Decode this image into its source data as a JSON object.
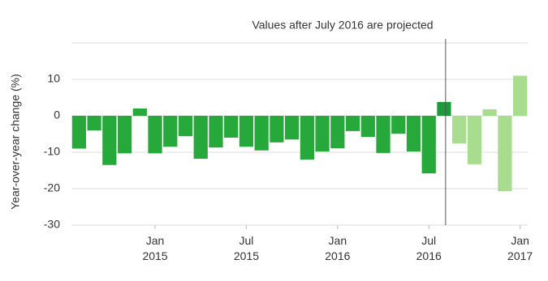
{
  "chart_data": {
    "type": "bar",
    "annotation": "Values after July 2016 are projected",
    "y_label": "Year-over-year change (%)",
    "categories": [
      null,
      null,
      null,
      null,
      null,
      "Jan 2015",
      null,
      null,
      null,
      null,
      null,
      "Jul 2015",
      null,
      null,
      null,
      null,
      null,
      "Jan 2016",
      null,
      null,
      null,
      null,
      null,
      "Jul 2016",
      null,
      null,
      null,
      null,
      null,
      "Jan 2017"
    ],
    "values": [
      -9,
      -4,
      -13.5,
      -10.3,
      2,
      -10.3,
      -8.5,
      -5.6,
      -11.8,
      -8.7,
      -6,
      -8.5,
      -9.5,
      -7.3,
      -6.5,
      -12,
      -9.8,
      -8.9,
      -4.2,
      -5.8,
      -10.2,
      -4.9,
      -9.8,
      -15.8,
      3.8,
      -7.6,
      -13.3,
      1.8,
      -20.7,
      11
    ],
    "colors": [
      "#27a83a",
      "#27a83a",
      "#27a83a",
      "#27a83a",
      "#27a83a",
      "#27a83a",
      "#27a83a",
      "#27a83a",
      "#27a83a",
      "#27a83a",
      "#27a83a",
      "#27a83a",
      "#27a83a",
      "#27a83a",
      "#27a83a",
      "#27a83a",
      "#27a83a",
      "#27a83a",
      "#27a83a",
      "#27a83a",
      "#27a83a",
      "#27a83a",
      "#27a83a",
      "#27a83a",
      "#1f9a3a",
      "#a8dc8f",
      "#a8dc8f",
      "#a8dc8f",
      "#a8dc8f",
      "#a8dc8f"
    ],
    "ylim": [
      -30,
      20
    ],
    "yticks": [
      -30,
      -20,
      -10,
      0,
      10
    ],
    "grid": true
  }
}
